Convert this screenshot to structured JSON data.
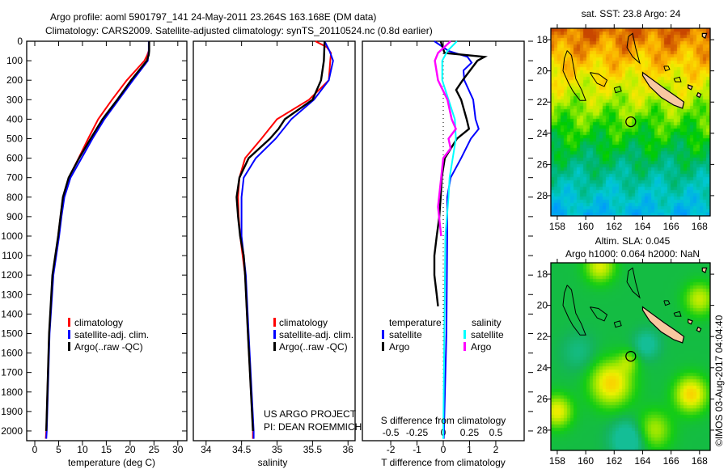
{
  "title": {
    "line1": "Argo profile: aoml 5901797_141 24-May-2011 23.264S 163.168E (DM data)",
    "line2": "Climatology: CARS2009. Satellite-adjusted climatology: synTS_20110524.nc (0.8d earlier)"
  },
  "credits": {
    "project": "US ARGO PROJECT",
    "pi": "PI: DEAN ROEMMICH",
    "copyright": "©IMOS 03-Aug-2017 04:04:40"
  },
  "colors": {
    "climatology": "#ff0000",
    "satellite": "#0000ff",
    "argo": "#000000",
    "sal_satellite": "#00ffff",
    "sal_argo": "#ff00ff"
  },
  "chart_data": [
    {
      "type": "line",
      "id": "temperature",
      "xlabel": "temperature (deg C)",
      "ylabel": "depth",
      "xlim": [
        -1.7,
        31.9
      ],
      "ylim": [
        2050,
        0
      ],
      "xticks": [
        0,
        5,
        10,
        15,
        20,
        25,
        30
      ],
      "yticks": [
        0,
        100,
        200,
        300,
        400,
        500,
        600,
        700,
        800,
        900,
        1000,
        1100,
        1200,
        1300,
        1400,
        1500,
        1600,
        1700,
        1800,
        1900,
        2000
      ],
      "legend": {
        "position": "center-left",
        "entries": [
          "climatology",
          "satellite-adj. clim.",
          "Argo(..raw -QC)"
        ]
      },
      "series": [
        {
          "name": "climatology",
          "color": "#ff0000",
          "depth": [
            0,
            50,
            70,
            100,
            200,
            300,
            400,
            500,
            600,
            700,
            800,
            900,
            1000,
            1200,
            1500,
            2000,
            2040
          ],
          "values": [
            24.0,
            23.9,
            23.6,
            23.0,
            19.3,
            16.2,
            13.3,
            11.2,
            9.2,
            7.1,
            5.9,
            5.4,
            4.9,
            3.8,
            3.0,
            2.4,
            2.3
          ]
        },
        {
          "name": "satellite-adj. clim.",
          "color": "#0000ff",
          "depth": [
            0,
            50,
            70,
            100,
            200,
            300,
            400,
            500,
            600,
            700,
            800,
            900,
            1000,
            1200,
            1500,
            2000,
            2040
          ],
          "values": [
            23.9,
            23.9,
            23.8,
            23.7,
            20.6,
            17.6,
            14.6,
            12.1,
            9.8,
            7.5,
            6.2,
            5.6,
            5.1,
            3.9,
            3.1,
            2.5,
            2.4
          ]
        },
        {
          "name": "Argo(..raw -QC)",
          "color": "#000000",
          "depth": [
            0,
            50,
            70,
            100,
            200,
            300,
            400,
            500,
            600,
            700,
            800,
            900,
            1000,
            1200,
            1500,
            2000
          ],
          "values": [
            24.0,
            24.0,
            23.9,
            23.5,
            20.2,
            17.3,
            14.2,
            11.7,
            9.3,
            7.1,
            5.9,
            5.4,
            4.9,
            3.7,
            3.0,
            2.4
          ]
        }
      ]
    },
    {
      "type": "line",
      "id": "salinity",
      "xlabel": "salinity",
      "xlim": [
        33.82,
        36.1
      ],
      "ylim": [
        2050,
        0
      ],
      "xticks": [
        34,
        34.5,
        35,
        35.5,
        36
      ],
      "legend": {
        "position": "center-left",
        "entries": [
          "climatology",
          "satellite-adj. clim.",
          "Argo(..raw -QC)"
        ]
      },
      "series": [
        {
          "name": "climatology",
          "color": "#ff0000",
          "depth": [
            0,
            30,
            60,
            100,
            200,
            300,
            400,
            500,
            600,
            700,
            800,
            900,
            1000,
            1200,
            1500,
            2000,
            2040
          ],
          "values": [
            35.54,
            35.7,
            35.76,
            35.75,
            35.73,
            35.45,
            35.0,
            34.78,
            34.55,
            34.47,
            34.45,
            34.46,
            34.48,
            34.55,
            34.59,
            34.66,
            34.66
          ]
        },
        {
          "name": "satellite-adj. clim.",
          "color": "#0000ff",
          "depth": [
            0,
            50,
            100,
            200,
            300,
            400,
            500,
            600,
            700,
            800,
            900,
            1000,
            1200,
            1500,
            2000,
            2040
          ],
          "values": [
            35.67,
            35.74,
            35.79,
            35.73,
            35.52,
            35.2,
            34.98,
            34.7,
            34.53,
            34.5,
            34.5,
            34.5,
            34.56,
            34.6,
            34.67,
            34.67
          ]
        },
        {
          "name": "Argo(..raw -QC)",
          "color": "#000000",
          "depth": [
            0,
            100,
            200,
            300,
            400,
            450,
            500,
            600,
            700,
            800,
            900,
            1000,
            1100,
            1200,
            1500,
            2000
          ],
          "values": [
            35.67,
            35.66,
            35.62,
            35.5,
            35.11,
            35.02,
            34.9,
            34.6,
            34.47,
            34.43,
            34.45,
            34.48,
            34.53,
            34.55,
            34.59,
            34.66
          ]
        }
      ]
    },
    {
      "type": "line",
      "id": "difference",
      "xlabel": "T difference from climatology",
      "xlabel2": "S difference from climatology",
      "xlim": [
        -3.08,
        3.08
      ],
      "ylim": [
        2050,
        0
      ],
      "xticks": [
        -2,
        -1,
        0,
        1,
        2
      ],
      "xticks_s": [
        -0.5,
        -0.25,
        0,
        0.25,
        0.5
      ],
      "xticks_s_labels": [
        "-0.5",
        "-0.25",
        "0",
        "0.25",
        "0.5"
      ],
      "legend": {
        "position": "center",
        "temperature_header": "temperature",
        "salinity_header": "salinity",
        "entries": [
          "satellite",
          "Argo",
          "satellite",
          "Argo"
        ]
      },
      "series": [
        {
          "name": "temperature satellite",
          "color": "#0000ff",
          "axis": "T",
          "depth": [
            0,
            50,
            80,
            110,
            150,
            200,
            300,
            400,
            450,
            500,
            600,
            700,
            800,
            1000,
            1500,
            2040
          ],
          "values": [
            -0.34,
            0.2,
            0.92,
            1.08,
            0.77,
            0.8,
            1.14,
            1.23,
            1.35,
            1.05,
            0.68,
            0.28,
            0.15,
            0.15,
            0.12,
            0.02
          ]
        },
        {
          "name": "temperature Argo",
          "color": "#000000",
          "axis": "T",
          "depth": [
            0,
            60,
            80,
            100,
            200,
            250,
            300,
            400,
            450,
            500,
            600,
            700,
            800,
            900,
            1000,
            1100,
            1200,
            1300,
            1360
          ],
          "values": [
            -0.1,
            0.05,
            1.57,
            1.3,
            0.74,
            0.49,
            0.68,
            0.89,
            0.98,
            0.52,
            0.06,
            -0.06,
            -0.1,
            -0.15,
            -0.25,
            -0.34,
            -0.34,
            -0.25,
            -0.2
          ]
        },
        {
          "name": "salinity satellite",
          "color": "#00ffff",
          "axis": "S",
          "depth": [
            0,
            50,
            100,
            200,
            300,
            400,
            500,
            600,
            700,
            800,
            1000,
            1500,
            2040
          ],
          "values": [
            0.13,
            0.04,
            -0.01,
            -0.01,
            0.05,
            0.11,
            0.12,
            0.09,
            0.06,
            0.05,
            0.02,
            0.01,
            0.0
          ]
        },
        {
          "name": "salinity Argo",
          "color": "#ff00ff",
          "axis": "S",
          "depth": [
            0,
            60,
            100,
            200,
            300,
            400,
            450,
            500,
            550,
            600,
            700,
            800,
            850,
            1000
          ],
          "values": [
            0.07,
            -0.05,
            -0.08,
            -0.05,
            0.04,
            0.08,
            0.12,
            0.05,
            0.07,
            0.0,
            -0.02,
            -0.04,
            -0.05,
            -0.02
          ]
        }
      ]
    },
    {
      "type": "heatmap",
      "id": "sst_map",
      "title": "sat. SST: 23.8 Argo: 24",
      "xlim": [
        157.55,
        168.75
      ],
      "ylim": [
        17.27,
        29.3
      ],
      "xticks": [
        158,
        160,
        162,
        164,
        166,
        168
      ],
      "yticks": [
        18,
        20,
        22,
        24,
        26,
        28
      ],
      "argo_position": [
        163.168,
        23.264
      ]
    },
    {
      "type": "heatmap",
      "id": "sla_map",
      "title": "Altim. SLA: 0.045",
      "subtitle": "Argo h1000: 0.064 h2000: NaN",
      "xlim": [
        157.55,
        168.75
      ],
      "ylim": [
        17.27,
        29.3
      ],
      "xticks": [
        158,
        160,
        162,
        164,
        166,
        168
      ],
      "yticks": [
        18,
        20,
        22,
        24,
        26,
        28
      ],
      "argo_position": [
        163.168,
        23.264
      ]
    }
  ]
}
